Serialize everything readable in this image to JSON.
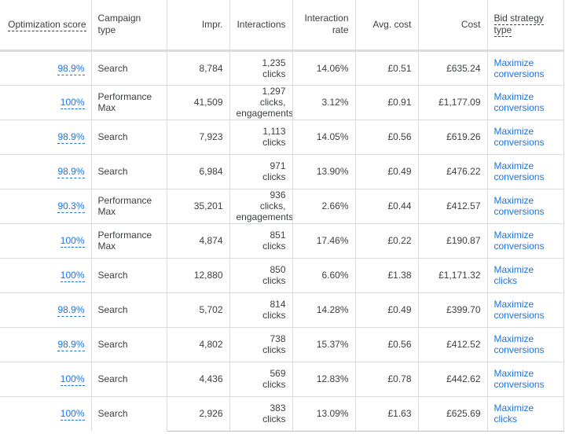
{
  "colors": {
    "link": "#1a73e8",
    "text": "#3c4043",
    "border": "#dadce0"
  },
  "headers": {
    "optimization_score": "Optimization score",
    "campaign_type": "Campaign type",
    "impr": "Impr.",
    "interactions": "Interactions",
    "interaction_rate": "Interaction rate",
    "avg_cost": "Avg. cost",
    "cost": "Cost",
    "bid_strategy_type": "Bid strategy type"
  },
  "rows": [
    {
      "score": "98.9%",
      "type": "Search",
      "impr": "8,784",
      "inter1": "1,235",
      "inter2": "clicks",
      "inter3": "",
      "rate": "14.06%",
      "avg": "£0.51",
      "cost": "£635.24",
      "bid1": "Maximize",
      "bid2": "conversions"
    },
    {
      "score": "100%",
      "type": "Performance Max",
      "impr": "41,509",
      "inter1": "1,297",
      "inter2": "clicks,",
      "inter3": "engagements",
      "rate": "3.12%",
      "avg": "£0.91",
      "cost": "£1,177.09",
      "bid1": "Maximize",
      "bid2": "conversions"
    },
    {
      "score": "98.9%",
      "type": "Search",
      "impr": "7,923",
      "inter1": "1,113",
      "inter2": "clicks",
      "inter3": "",
      "rate": "14.05%",
      "avg": "£0.56",
      "cost": "£619.26",
      "bid1": "Maximize",
      "bid2": "conversions"
    },
    {
      "score": "98.9%",
      "type": "Search",
      "impr": "6,984",
      "inter1": "971",
      "inter2": "clicks",
      "inter3": "",
      "rate": "13.90%",
      "avg": "£0.49",
      "cost": "£476.22",
      "bid1": "Maximize",
      "bid2": "conversions"
    },
    {
      "score": "90.3%",
      "type": "Performance Max",
      "impr": "35,201",
      "inter1": "936",
      "inter2": "clicks,",
      "inter3": "engagements",
      "rate": "2.66%",
      "avg": "£0.44",
      "cost": "£412.57",
      "bid1": "Maximize",
      "bid2": "conversions"
    },
    {
      "score": "100%",
      "type": "Performance Max",
      "impr": "4,874",
      "inter1": "851",
      "inter2": "clicks",
      "inter3": "",
      "rate": "17.46%",
      "avg": "£0.22",
      "cost": "£190.87",
      "bid1": "Maximize",
      "bid2": "conversions"
    },
    {
      "score": "100%",
      "type": "Search",
      "impr": "12,880",
      "inter1": "850",
      "inter2": "clicks",
      "inter3": "",
      "rate": "6.60%",
      "avg": "£1.38",
      "cost": "£1,171.32",
      "bid1": "Maximize",
      "bid2": "clicks"
    },
    {
      "score": "98.9%",
      "type": "Search",
      "impr": "5,702",
      "inter1": "814",
      "inter2": "clicks",
      "inter3": "",
      "rate": "14.28%",
      "avg": "£0.49",
      "cost": "£399.70",
      "bid1": "Maximize",
      "bid2": "conversions"
    },
    {
      "score": "98.9%",
      "type": "Search",
      "impr": "4,802",
      "inter1": "738",
      "inter2": "clicks",
      "inter3": "",
      "rate": "15.37%",
      "avg": "£0.56",
      "cost": "£412.52",
      "bid1": "Maximize",
      "bid2": "conversions"
    },
    {
      "score": "100%",
      "type": "Search",
      "impr": "4,436",
      "inter1": "569",
      "inter2": "clicks",
      "inter3": "",
      "rate": "12.83%",
      "avg": "£0.78",
      "cost": "£442.62",
      "bid1": "Maximize",
      "bid2": "conversions"
    },
    {
      "score": "100%",
      "type": "Search",
      "impr": "2,926",
      "inter1": "383",
      "inter2": "clicks",
      "inter3": "",
      "rate": "13.09%",
      "avg": "£1.63",
      "cost": "£625.69",
      "bid1": "Maximize",
      "bid2": "clicks"
    }
  ]
}
